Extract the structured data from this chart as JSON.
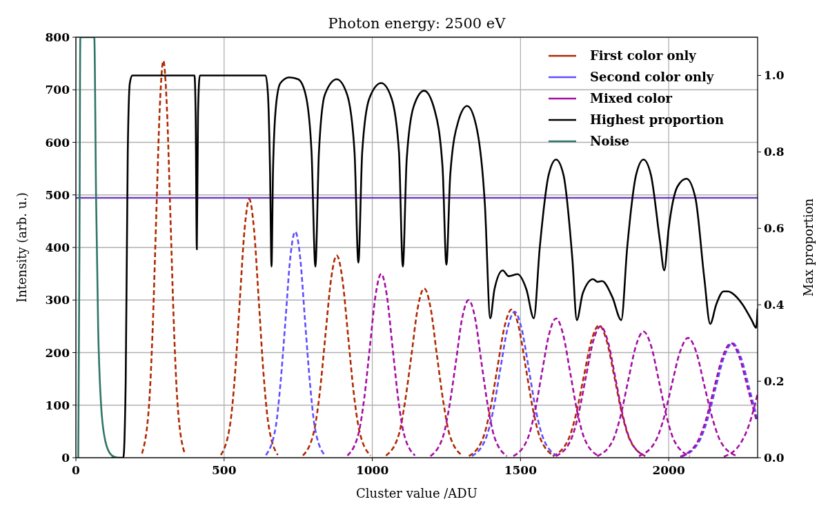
{
  "chart_data": {
    "type": "line",
    "title": "Photon energy: 2500 eV",
    "xlabel": "Cluster value /ADU",
    "ylabel": "Intensity (arb. u.)",
    "y2label": "Max proportion",
    "xlim": [
      0,
      2300
    ],
    "xticks": [
      0,
      500,
      1000,
      1500,
      2000
    ],
    "ylim": [
      0,
      800
    ],
    "yticks": [
      0,
      100,
      200,
      300,
      400,
      500,
      600,
      700,
      800
    ],
    "y2lim": [
      0,
      1.1
    ],
    "y2ticks": [
      {
        "value": 0,
        "label": "0.0"
      },
      {
        "value": 0.2,
        "label": "0.2"
      },
      {
        "value": 0.4,
        "label": "0.4"
      },
      {
        "value": 0.6,
        "label": "0.6"
      },
      {
        "value": 0.8,
        "label": "0.8"
      },
      {
        "value": 1,
        "label": "1.0"
      }
    ],
    "grid": true,
    "legend": "top right",
    "ref_lines": [
      {
        "axis": "y2",
        "value": 0.68,
        "color": "#6f3fbf"
      }
    ],
    "series": [
      {
        "name": "First color only",
        "color": "#b02800",
        "line_style": "dashed",
        "x": [
          223,
          247,
          259,
          271,
          283,
          295,
          307,
          319,
          331,
          343,
          367
        ],
        "values": [
          8,
          102,
          245,
          458,
          666,
          755,
          666,
          458,
          245,
          102,
          8
        ]
      },
      {
        "color": "#b02800",
        "line_style": "dashed",
        "x": [
          489,
          521,
          537,
          553,
          569,
          585,
          601,
          617,
          633,
          649,
          681
        ],
        "values": [
          5,
          66,
          160,
          299,
          434,
          492,
          434,
          299,
          160,
          66,
          5
        ]
      },
      {
        "color": "#b02800",
        "line_style": "dashed",
        "x": [
          766,
          804,
          823,
          842,
          861,
          880,
          899,
          918,
          937,
          956,
          994
        ],
        "values": [
          4,
          52,
          125,
          234,
          340,
          385,
          340,
          234,
          125,
          52,
          4
        ]
      },
      {
        "color": "#b02800",
        "line_style": "dashed",
        "x": [
          1046,
          1089,
          1110,
          1132,
          1153,
          1175,
          1197,
          1218,
          1240,
          1261,
          1304
        ],
        "values": [
          4,
          43,
          105,
          195,
          284,
          322,
          284,
          195,
          105,
          43,
          4
        ]
      },
      {
        "color": "#b02800",
        "line_style": "dashed",
        "x": [
          1326,
          1374,
          1398,
          1422,
          1446,
          1470,
          1494,
          1518,
          1542,
          1566,
          1614
        ],
        "values": [
          3,
          38,
          92,
          171,
          249,
          282,
          249,
          171,
          92,
          38,
          3
        ]
      },
      {
        "color": "#b02800",
        "line_style": "dashed",
        "x": [
          1609,
          1661,
          1687,
          1713,
          1739,
          1765,
          1791,
          1817,
          1843,
          1869,
          1921
        ],
        "values": [
          3,
          34,
          82,
          153,
          222,
          252,
          222,
          153,
          82,
          34,
          3
        ]
      },
      {
        "name": "Second color only",
        "color": "#5f4dff",
        "line_style": "dashed",
        "x": [
          641,
          674,
          690,
          707,
          723,
          740,
          757,
          773,
          790,
          806,
          839
        ],
        "values": [
          5,
          58,
          140,
          261,
          379,
          430,
          379,
          261,
          140,
          58,
          5
        ]
      },
      {
        "color": "#5f4dff",
        "line_style": "dashed",
        "x": [
          1336,
          1384,
          1408,
          1432,
          1456,
          1480,
          1504,
          1528,
          1552,
          1576,
          1624
        ],
        "values": [
          3,
          38,
          90,
          169,
          245,
          278,
          245,
          169,
          90,
          38,
          3
        ]
      },
      {
        "color": "#5f4dff",
        "line_style": "dashed",
        "x": [
          2044,
          2101,
          2130,
          2158,
          2187,
          2215,
          2243,
          2272,
          2300
        ],
        "values": [
          2,
          29,
          71,
          132,
          192,
          218,
          192,
          132,
          71
        ]
      },
      {
        "name": "Mixed color",
        "color": "#a40ca4",
        "line_style": "dashed",
        "x": [
          916,
          954,
          973,
          992,
          1011,
          1030,
          1049,
          1068,
          1087,
          1106,
          1144
        ],
        "values": [
          4,
          47,
          114,
          212,
          309,
          350,
          309,
          212,
          114,
          47,
          4
        ]
      },
      {
        "color": "#a40ca4",
        "line_style": "dashed",
        "x": [
          1196,
          1239,
          1260,
          1282,
          1303,
          1325,
          1347,
          1368,
          1390,
          1411,
          1454
        ],
        "values": [
          3,
          41,
          98,
          182,
          265,
          300,
          265,
          182,
          98,
          41,
          3
        ]
      },
      {
        "color": "#a40ca4",
        "line_style": "dashed",
        "x": [
          1476,
          1524,
          1548,
          1572,
          1596,
          1620,
          1644,
          1668,
          1692,
          1716,
          1764
        ],
        "values": [
          3,
          36,
          86,
          161,
          234,
          265,
          234,
          161,
          86,
          36,
          3
        ]
      },
      {
        "color": "#a40ca4",
        "line_style": "dashed",
        "x": [
          1620,
          1670,
          1695,
          1720,
          1745,
          1770,
          1795,
          1820,
          1845,
          1870,
          1920
        ],
        "values": [
          3,
          34,
          81,
          152,
          221,
          250,
          221,
          152,
          81,
          34,
          3
        ]
      },
      {
        "color": "#a40ca4",
        "line_style": "dashed",
        "x": [
          1759,
          1811,
          1837,
          1863,
          1889,
          1915,
          1941,
          1967,
          1993,
          2019,
          2071
        ],
        "values": [
          3,
          32,
          78,
          146,
          212,
          240,
          212,
          146,
          78,
          32,
          3
        ]
      },
      {
        "color": "#a40ca4",
        "line_style": "dashed",
        "x": [
          1900,
          1955,
          1983,
          2010,
          2038,
          2065,
          2093,
          2120,
          2148,
          2175,
          2230
        ],
        "values": [
          3,
          31,
          74,
          138,
          201,
          228,
          201,
          138,
          74,
          31,
          3
        ]
      },
      {
        "color": "#a40ca4",
        "line_style": "dashed",
        "x": [
          2039,
          2096,
          2125,
          2153,
          2182,
          2210,
          2238,
          2267,
          2296
        ],
        "values": [
          2,
          29,
          71,
          132,
          192,
          218,
          192,
          132,
          71
        ]
      },
      {
        "color": "#a40ca4",
        "line_style": "dashed",
        "x": [
          2186,
          2243,
          2272,
          2300
        ],
        "values": [
          2,
          28,
          64,
          122
        ]
      },
      {
        "name": "Highest proportion",
        "color": "#000000",
        "line_style": "solid",
        "axis": "y2",
        "x": [
          120,
          160,
          168,
          175,
          182,
          190,
          400,
          404,
          408,
          412,
          418,
          640,
          648,
          655,
          660,
          665,
          675,
          690,
          720,
          750,
          775,
          795,
          808,
          820,
          840,
          880,
          915,
          940,
          953,
          966,
          990,
          1030,
          1065,
          1090,
          1103,
          1116,
          1140,
          1175,
          1210,
          1237,
          1250,
          1263,
          1290,
          1320,
          1350,
          1380,
          1398,
          1412,
          1440,
          1460,
          1490,
          1520,
          1545,
          1565,
          1595,
          1620,
          1645,
          1675,
          1690,
          1710,
          1745,
          1760,
          1775,
          1810,
          1840,
          1860,
          1890,
          1915,
          1940,
          1970,
          1985,
          2000,
          2030,
          2060,
          2090,
          2120,
          2140,
          2160,
          2185,
          2200,
          2215,
          2250,
          2280,
          2295,
          2300
        ],
        "values": [
          0,
          0,
          0.2,
          0.8,
          0.98,
          1,
          1,
          0.9,
          0.545,
          0.9,
          1,
          1,
          0.95,
          0.75,
          0.5,
          0.75,
          0.92,
          0.98,
          0.995,
          0.99,
          0.95,
          0.8,
          0.5,
          0.8,
          0.95,
          0.99,
          0.95,
          0.8,
          0.51,
          0.8,
          0.94,
          0.98,
          0.94,
          0.8,
          0.5,
          0.78,
          0.92,
          0.96,
          0.91,
          0.76,
          0.505,
          0.74,
          0.88,
          0.92,
          0.87,
          0.66,
          0.365,
          0.44,
          0.49,
          0.475,
          0.48,
          0.44,
          0.365,
          0.55,
          0.74,
          0.78,
          0.74,
          0.52,
          0.36,
          0.43,
          0.467,
          0.46,
          0.462,
          0.42,
          0.36,
          0.55,
          0.74,
          0.78,
          0.74,
          0.57,
          0.49,
          0.6,
          0.71,
          0.73,
          0.68,
          0.47,
          0.35,
          0.4,
          0.435,
          0.435,
          0.43,
          0.4,
          0.36,
          0.34,
          0.39
        ]
      },
      {
        "name": "Noise",
        "color": "#2e7566",
        "line_style": "solid",
        "x": [
          8,
          12,
          15,
          62,
          68,
          75,
          85,
          100,
          120,
          140
        ],
        "values": [
          0,
          400,
          800,
          800,
          500,
          250,
          100,
          30,
          5,
          0
        ]
      }
    ]
  }
}
